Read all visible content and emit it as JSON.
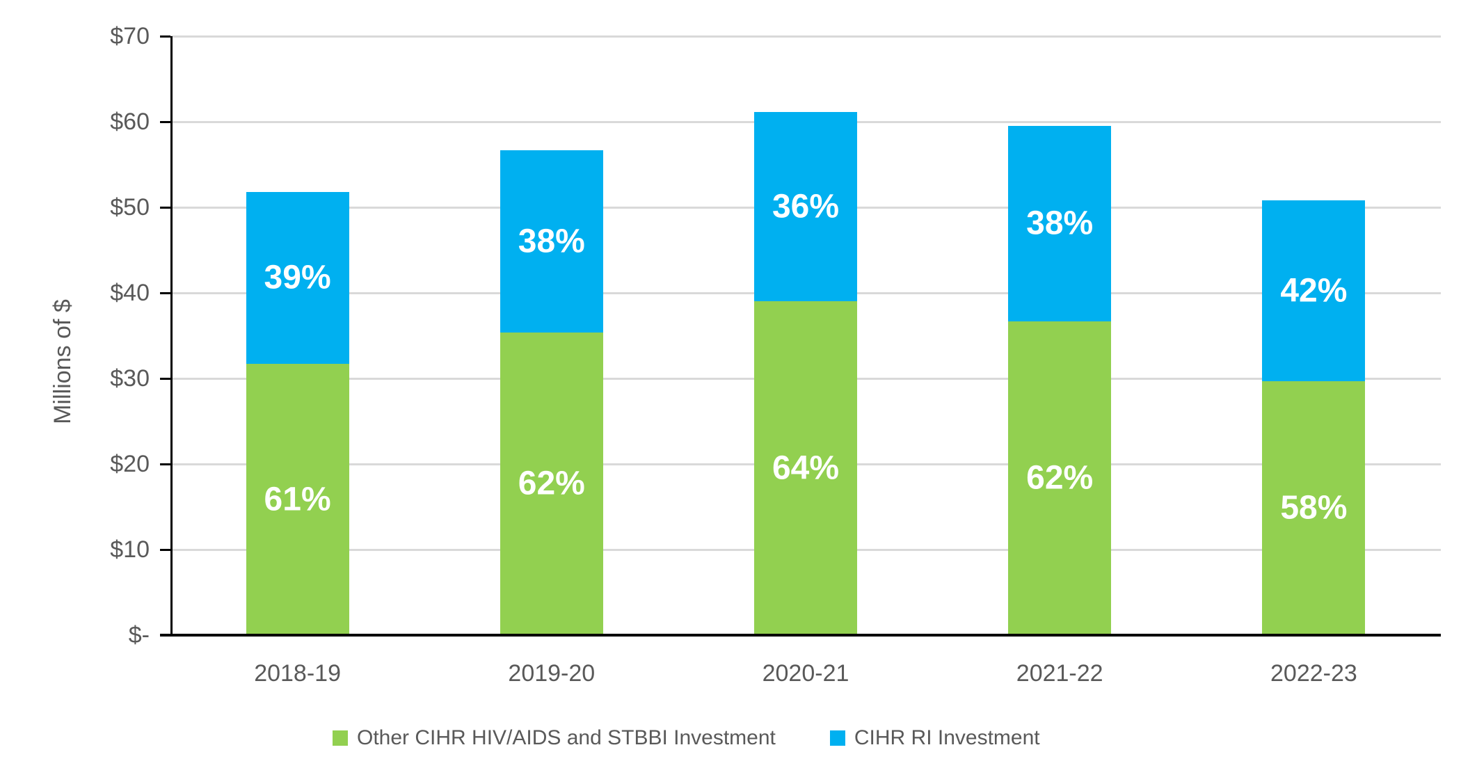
{
  "chart_data": {
    "type": "bar",
    "subtype": "stacked-column",
    "title": "",
    "categories": [
      "2018-19",
      "2019-20",
      "2020-21",
      "2021-22",
      "2022-23"
    ],
    "series": [
      {
        "name": "Other CIHR HIV/AIDS and STBBI Investment",
        "color": "#92D050",
        "values": [
          31.7,
          35.4,
          39.0,
          36.7,
          29.7
        ],
        "data_labels": [
          "61%",
          "62%",
          "64%",
          "62%",
          "58%"
        ]
      },
      {
        "name": "CIHR RI Investment",
        "color": "#00B0F0",
        "values": [
          20.1,
          21.3,
          22.1,
          22.8,
          21.1
        ],
        "data_labels": [
          "39%",
          "38%",
          "36%",
          "38%",
          "42%"
        ]
      }
    ],
    "totals": [
      51.8,
      56.7,
      61.1,
      59.5,
      50.8
    ],
    "xlabel": "",
    "ylabel": "Millions of $",
    "ylim": [
      0,
      70
    ],
    "ytick_values": [
      0,
      10,
      20,
      30,
      40,
      50,
      60,
      70
    ],
    "ytick_labels": [
      "$-",
      "$10",
      "$20",
      "$30",
      "$40",
      "$50",
      "$60",
      "$70"
    ],
    "grid": true,
    "legend_position": "bottom",
    "data_label_color": "#FFFFFF"
  },
  "colors": {
    "axis_text": "#595959",
    "gridline": "#D9D9D9",
    "axis_line": "#000000",
    "background": "#FFFFFF"
  }
}
